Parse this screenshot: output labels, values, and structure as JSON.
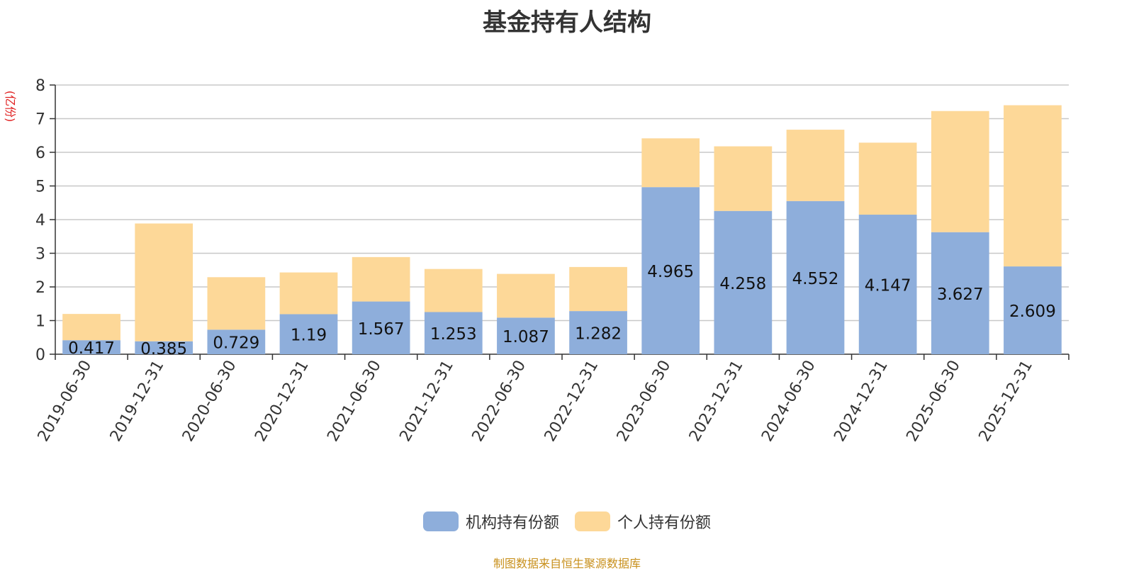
{
  "title": "基金持有人结构",
  "unit_label": "(亿份)",
  "source": "制图数据来自恒生聚源数据库",
  "colors": {
    "institutional": "#8eaedb",
    "individual": "#fdd898",
    "grid": "#c8c8c8",
    "axis": "#333333"
  },
  "chart_data": {
    "type": "bar",
    "stacked": true,
    "title": "基金持有人结构",
    "ylabel": "(亿份)",
    "ylim": [
      0,
      8
    ],
    "yticks": [
      0,
      1,
      2,
      3,
      4,
      5,
      6,
      7,
      8
    ],
    "grid": true,
    "legend_position": "bottom",
    "categories": [
      "2019-06-30",
      "2019-12-31",
      "2020-06-30",
      "2020-12-31",
      "2021-06-30",
      "2021-12-31",
      "2022-06-30",
      "2022-12-31",
      "2023-06-30",
      "2023-12-31",
      "2024-06-30",
      "2024-12-31",
      "2025-06-30",
      "2025-12-31"
    ],
    "series": [
      {
        "name": "机构持有份额",
        "values": [
          0.417,
          0.385,
          0.729,
          1.19,
          1.567,
          1.253,
          1.087,
          1.282,
          4.965,
          4.258,
          4.552,
          4.147,
          3.627,
          2.609
        ],
        "labels": [
          "0.417",
          "0.385",
          "0.729",
          "1.19",
          "1.567",
          "1.253",
          "1.087",
          "1.282",
          "4.965",
          "4.258",
          "4.552",
          "4.147",
          "3.627",
          "2.609"
        ]
      },
      {
        "name": "个人持有份额",
        "values": [
          0.78,
          3.5,
          1.56,
          1.24,
          1.32,
          1.28,
          1.3,
          1.31,
          1.45,
          1.92,
          2.12,
          2.14,
          3.6,
          4.79
        ]
      }
    ]
  }
}
